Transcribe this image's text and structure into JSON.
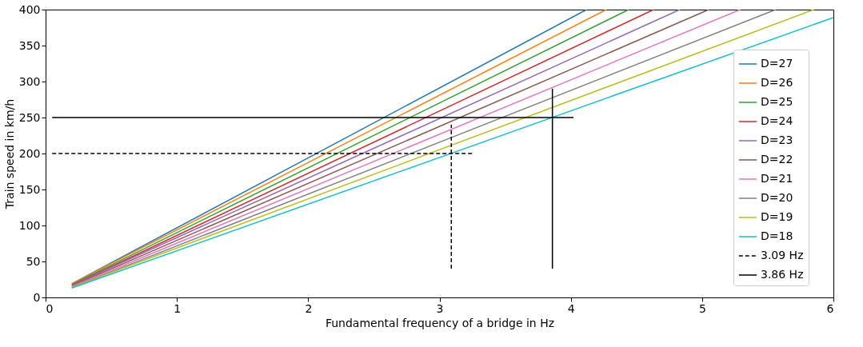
{
  "chart_data": {
    "type": "line",
    "xlabel": "Fundamental frequency of a bridge in Hz",
    "ylabel": "Train speed in km/h",
    "xlim": [
      0,
      6
    ],
    "ylim": [
      0,
      400
    ],
    "xticks": [
      0,
      1,
      2,
      3,
      4,
      5,
      6
    ],
    "yticks": [
      0,
      50,
      100,
      150,
      200,
      250,
      300,
      350,
      400
    ],
    "grid": false,
    "legend": "right",
    "marker": "none",
    "line_style": "solid",
    "series": [
      {
        "name": "D=27",
        "color": "#1f77b4",
        "x": [
          0.2,
          4.12
        ],
        "values": [
          19,
          400
        ]
      },
      {
        "name": "D=26",
        "color": "#ff7f0e",
        "x": [
          0.2,
          4.27
        ],
        "values": [
          19,
          400
        ]
      },
      {
        "name": "D=25",
        "color": "#2ca02c",
        "x": [
          0.2,
          4.44
        ],
        "values": [
          18,
          400
        ]
      },
      {
        "name": "D=24",
        "color": "#d62728",
        "x": [
          0.2,
          4.63
        ],
        "values": [
          17,
          400
        ]
      },
      {
        "name": "D=23",
        "color": "#9467bd",
        "x": [
          0.2,
          4.83
        ],
        "values": [
          17,
          400
        ]
      },
      {
        "name": "D=22",
        "color": "#8c564b",
        "x": [
          0.2,
          5.05
        ],
        "values": [
          16,
          400
        ]
      },
      {
        "name": "D=21",
        "color": "#e377c2",
        "x": [
          0.2,
          5.29
        ],
        "values": [
          15,
          400
        ]
      },
      {
        "name": "D=20",
        "color": "#7f7f7f",
        "x": [
          0.2,
          5.56
        ],
        "values": [
          14,
          400
        ]
      },
      {
        "name": "D=19",
        "color": "#bcbd22",
        "x": [
          0.2,
          5.85
        ],
        "values": [
          14,
          400
        ]
      },
      {
        "name": "D=18",
        "color": "#17becf",
        "x": [
          0.2,
          6
        ],
        "values": [
          13,
          389
        ]
      },
      {
        "name": "3.09 Hz",
        "color": "#000000",
        "line_style": "dashed",
        "x": [
          0.05,
          3.25,
          null,
          3.09,
          3.09
        ],
        "values": [
          200,
          200,
          null,
          40,
          240
        ]
      },
      {
        "name": "3.86 Hz",
        "color": "#000000",
        "line_style": "solid",
        "x": [
          0.05,
          4.02,
          null,
          3.86,
          3.86
        ],
        "values": [
          250,
          250,
          null,
          40,
          290
        ]
      }
    ]
  }
}
